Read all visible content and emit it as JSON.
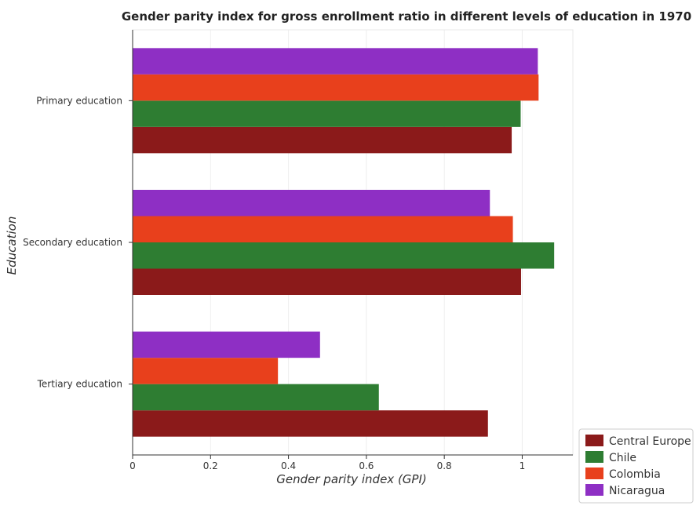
{
  "chart_data": {
    "type": "bar",
    "orientation": "horizontal",
    "title": "Gender parity index for gross enrollment ratio in different levels of education in 1970",
    "xlabel": "Gender parity index (GPI)",
    "ylabel": "Education",
    "categories": [
      "Primary education",
      "Secondary education",
      "Tertiary education"
    ],
    "series": [
      {
        "name": "Central Europe",
        "color": "#8b1a1a",
        "values": [
          0.973,
          0.997,
          0.912
        ]
      },
      {
        "name": "Chile",
        "color": "#2e7d32",
        "values": [
          0.996,
          1.082,
          0.632
        ]
      },
      {
        "name": "Colombia",
        "color": "#e8401c",
        "values": [
          1.042,
          0.976,
          0.373
        ]
      },
      {
        "name": "Nicaragua",
        "color": "#8e2fc4",
        "values": [
          1.04,
          0.917,
          0.481
        ]
      }
    ],
    "xlim": [
      0,
      1.13
    ],
    "xticks": [
      0,
      0.2,
      0.4,
      0.6,
      0.8,
      1
    ],
    "xtick_labels": [
      "0",
      "0.2",
      "0.4",
      "0.6",
      "0.8",
      "1"
    ],
    "grid": true,
    "legend_position": "bottom-right"
  }
}
